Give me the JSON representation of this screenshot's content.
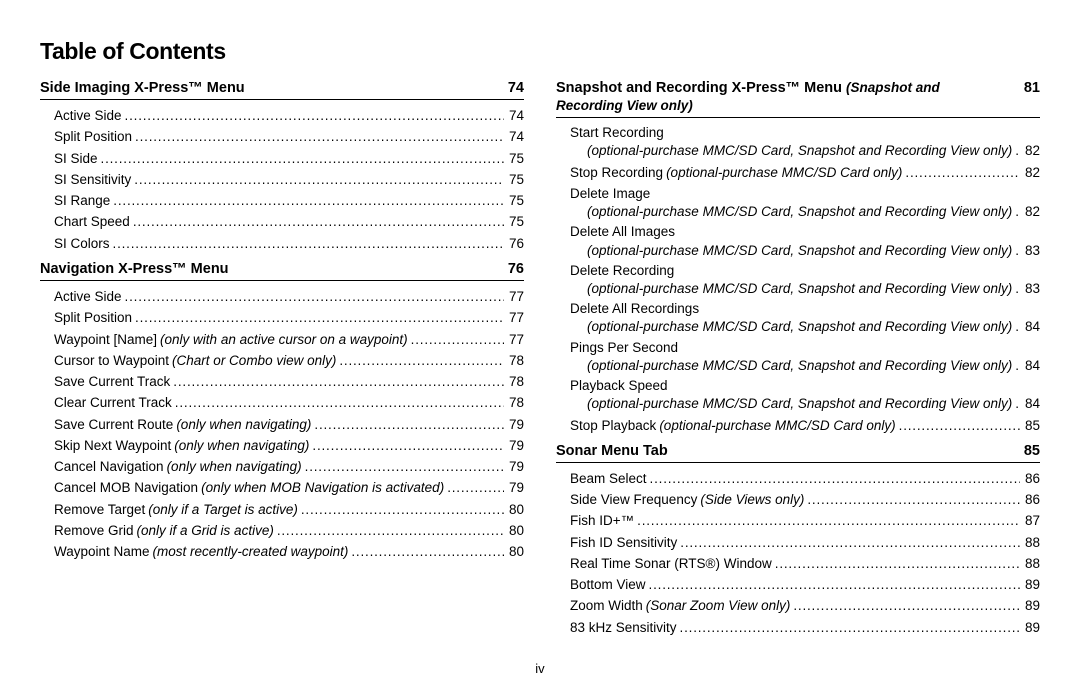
{
  "page": {
    "title": "Table of Contents",
    "pagenum": "iv"
  },
  "left": {
    "sec0": {
      "title": "Side Imaging X-Press™ Menu",
      "page": "74",
      "i0": {
        "label": "Active Side",
        "page": "74"
      },
      "i1": {
        "label": "Split Position",
        "page": "74"
      },
      "i2": {
        "label": "SI Side",
        "page": "75"
      },
      "i3": {
        "label": "SI Sensitivity",
        "page": "75"
      },
      "i4": {
        "label": "SI Range",
        "page": "75"
      },
      "i5": {
        "label": "Chart Speed",
        "page": "75"
      },
      "i6": {
        "label": "SI Colors",
        "page": "76"
      }
    },
    "sec1": {
      "title": "Navigation X-Press™ Menu",
      "page": "76",
      "i0": {
        "label": "Active Side",
        "page": "77"
      },
      "i1": {
        "label": "Split Position",
        "page": "77"
      },
      "i2": {
        "label": "Waypoint [Name]",
        "note": "(only with an active cursor on a waypoint)",
        "page": "77"
      },
      "i3": {
        "label": "Cursor to Waypoint",
        "note": "(Chart or Combo view only)",
        "page": "78"
      },
      "i4": {
        "label": "Save Current Track",
        "page": "78"
      },
      "i5": {
        "label": "Clear Current Track",
        "page": "78"
      },
      "i6": {
        "label": "Save Current Route",
        "note": "(only when navigating)",
        "page": "79"
      },
      "i7": {
        "label": "Skip Next Waypoint",
        "note": "(only when navigating)",
        "page": "79"
      },
      "i8": {
        "label": "Cancel Navigation",
        "note": "(only when navigating)",
        "page": "79"
      },
      "i9": {
        "label": "Cancel MOB Navigation",
        "note": "(only when MOB Navigation is activated)",
        "page": "79"
      },
      "i10": {
        "label": "Remove Target",
        "note": "(only if a Target is active)",
        "page": "80"
      },
      "i11": {
        "label": "Remove Grid",
        "note": "(only if a Grid is active)",
        "page": "80"
      },
      "i12": {
        "label": "Waypoint Name",
        "note": "(most recently-created waypoint)",
        "page": "80"
      }
    }
  },
  "right": {
    "sec0": {
      "title": "Snapshot and Recording X-Press™ Menu",
      "note": "(Snapshot and Recording View only)",
      "page": "81",
      "i0": {
        "label": "Start Recording",
        "sub": "(optional-purchase MMC/SD Card, Snapshot and Recording View only)",
        "page": "82"
      },
      "i1": {
        "label": "Stop Recording",
        "note": "(optional-purchase MMC/SD Card only)",
        "page": "82"
      },
      "i2": {
        "label": "Delete Image",
        "sub": "(optional-purchase MMC/SD Card, Snapshot and Recording View only)",
        "page": "82"
      },
      "i3": {
        "label": "Delete All Images",
        "sub": "(optional-purchase MMC/SD Card, Snapshot and Recording View only)",
        "page": "83"
      },
      "i4": {
        "label": "Delete Recording",
        "sub": "(optional-purchase MMC/SD Card, Snapshot and Recording View only)",
        "page": "83"
      },
      "i5": {
        "label": "Delete All Recordings",
        "sub": "(optional-purchase MMC/SD Card, Snapshot and Recording View only)",
        "page": "84"
      },
      "i6": {
        "label": "Pings Per Second",
        "sub": "(optional-purchase MMC/SD Card, Snapshot and Recording View only)",
        "page": "84"
      },
      "i7": {
        "label": "Playback Speed",
        "sub": "(optional-purchase MMC/SD Card, Snapshot and Recording View only)",
        "page": "84"
      },
      "i8": {
        "label": "Stop Playback",
        "note": "(optional-purchase MMC/SD Card only)",
        "page": "85"
      }
    },
    "sec1": {
      "title": "Sonar Menu Tab",
      "page": "85",
      "i0": {
        "label": "Beam Select",
        "page": "86"
      },
      "i1": {
        "label": "Side View Frequency",
        "note": "(Side Views only)",
        "page": "86"
      },
      "i2": {
        "label": "Fish ID+™",
        "page": "87"
      },
      "i3": {
        "label": "Fish ID Sensitivity",
        "page": "88"
      },
      "i4": {
        "label": "Real Time Sonar (RTS®) Window",
        "page": "88"
      },
      "i5": {
        "label": "Bottom View",
        "page": "89"
      },
      "i6": {
        "label": "Zoom Width",
        "note": "(Sonar Zoom View only)",
        "page": "89"
      },
      "i7": {
        "label": "83 kHz Sensitivity",
        "page": "89"
      }
    }
  }
}
